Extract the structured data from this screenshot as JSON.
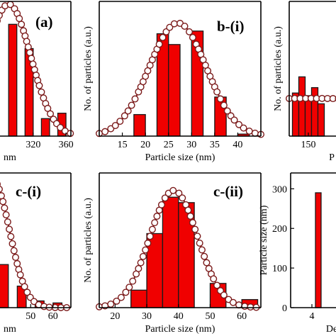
{
  "chart_data": [
    {
      "panel": "(a)",
      "type": "bar",
      "xlabel": "nm",
      "ylabel": "",
      "xlim": [
        276,
        366
      ],
      "ylim": [
        0,
        10
      ],
      "xticks": [
        320,
        360
      ],
      "bars": [
        {
          "x": 290,
          "width": 10,
          "value": 8.3
        },
        {
          "x": 310,
          "width": 10,
          "value": 6.5
        },
        {
          "x": 330,
          "width": 10,
          "value": 1.3
        },
        {
          "x": 350,
          "width": 10,
          "value": 1.7
        }
      ],
      "fit": {
        "type": "gaussian",
        "mean": 290,
        "sd": 27,
        "amp": 9.8
      }
    },
    {
      "panel": "b-(i)",
      "type": "bar",
      "xlabel": "Particle size (nm)",
      "ylabel": "No. of particles (a.u.)",
      "xlim": [
        10,
        45
      ],
      "ylim": [
        0,
        10
      ],
      "xticks": [
        15,
        20,
        25,
        30,
        35,
        40
      ],
      "bars": [
        {
          "x": 17.5,
          "width": 2.5,
          "value": 1.6
        },
        {
          "x": 22.5,
          "width": 2.5,
          "value": 7.6
        },
        {
          "x": 25,
          "width": 2.5,
          "value": 6.8
        },
        {
          "x": 30,
          "width": 2.5,
          "value": 7.8
        },
        {
          "x": 35,
          "width": 2.5,
          "value": 2.9
        },
        {
          "x": 40,
          "width": 2.5,
          "value": 0.15
        }
      ],
      "fit": {
        "type": "gaussian",
        "mean": 27,
        "sd": 6.2,
        "amp": 8.4
      }
    },
    {
      "panel": "",
      "type": "bar",
      "xlabel": "P",
      "ylabel": "No. of particles (a.u.)",
      "xlim": [
        120,
        200
      ],
      "ylim": [
        0,
        10
      ],
      "xticks": [
        150
      ],
      "bars": [
        {
          "x": 125,
          "width": 10,
          "value": 3.2
        },
        {
          "x": 135,
          "width": 10,
          "value": 4.4
        },
        {
          "x": 145,
          "width": 10,
          "value": 3.0
        },
        {
          "x": 155,
          "width": 10,
          "value": 3.6
        },
        {
          "x": 165,
          "width": 10,
          "value": 2.4
        }
      ],
      "fit": {
        "type": "gaussian",
        "mean": 150,
        "sd": 400,
        "amp": 2.8
      }
    },
    {
      "panel": "c-(i)",
      "type": "bar",
      "xlabel": "nm",
      "ylabel": "",
      "xlim": [
        35,
        68
      ],
      "ylim": [
        0,
        10
      ],
      "xticks": [
        50,
        60
      ],
      "bars": [
        {
          "x": 36,
          "width": 4,
          "value": 3.2
        },
        {
          "x": 44,
          "width": 4,
          "value": 1.6
        },
        {
          "x": 52,
          "width": 4,
          "value": 0.5
        },
        {
          "x": 60,
          "width": 4,
          "value": 0.35
        }
      ],
      "fit": {
        "type": "gaussian",
        "mean": 33,
        "sd": 7.5,
        "amp": 9.5
      }
    },
    {
      "panel": "c-(ii)",
      "type": "bar",
      "xlabel": "Particle size (nm)",
      "ylabel": "No. of particles (a.u.)",
      "xlim": [
        15,
        66
      ],
      "ylim": [
        0,
        10
      ],
      "xticks": [
        20,
        30,
        40,
        50,
        60
      ],
      "bars": [
        {
          "x": 25,
          "width": 5,
          "value": 1.3
        },
        {
          "x": 30,
          "width": 5,
          "value": 5.5
        },
        {
          "x": 35,
          "width": 5,
          "value": 8.2
        },
        {
          "x": 40,
          "width": 5,
          "value": 7.8
        },
        {
          "x": 50,
          "width": 5,
          "value": 1.8
        },
        {
          "x": 60,
          "width": 5,
          "value": 0.6
        }
      ],
      "fit": {
        "type": "gaussian",
        "mean": 38.5,
        "sd": 7.5,
        "amp": 8.7
      }
    },
    {
      "panel": "",
      "type": "bar",
      "xlabel": "De",
      "ylabel": "Particle size (nm)",
      "xlim": [
        2.5,
        6
      ],
      "ylim": [
        0,
        340
      ],
      "xticks": [
        4
      ],
      "yticks": [
        0,
        100,
        200,
        300
      ],
      "bars": [
        {
          "x": 4.25,
          "width": 0.4,
          "value": 290
        }
      ]
    }
  ]
}
